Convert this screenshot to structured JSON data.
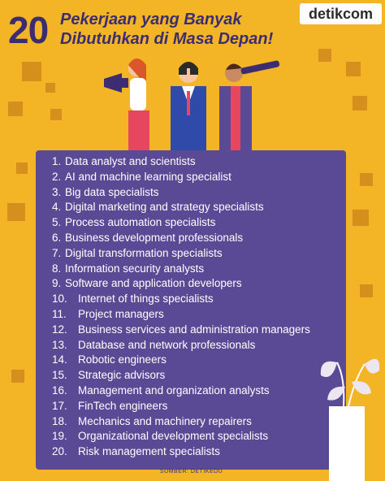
{
  "header": {
    "number": "20",
    "title_line1": "Pekerjaan yang Banyak",
    "title_line2": "Dibutuhkan di Masa Depan!"
  },
  "brand": {
    "logo": "detikcom"
  },
  "jobs": [
    {
      "n": "1.",
      "label": "Data analyst and scientists"
    },
    {
      "n": "2.",
      "label": "AI and machine learning specialist"
    },
    {
      "n": "3.",
      "label": "Big data specialists"
    },
    {
      "n": "4.",
      "label": "Digital marketing and strategy specialists"
    },
    {
      "n": "5.",
      "label": "Process automation specialists"
    },
    {
      "n": "6.",
      "label": "Business development professionals"
    },
    {
      "n": "7.",
      "label": "Digital transformation specialists"
    },
    {
      "n": "8.",
      "label": "Information security analysts"
    },
    {
      "n": "9.",
      "label": "Software and application developers"
    },
    {
      "n": "10.",
      "label": "Internet of things specialists"
    },
    {
      "n": "11.",
      "label": "Project managers"
    },
    {
      "n": "12.",
      "label": "Business services and administration managers"
    },
    {
      "n": "13.",
      "label": "Database and network professionals"
    },
    {
      "n": "14.",
      "label": "Robotic engineers"
    },
    {
      "n": "15.",
      "label": "Strategic advisors"
    },
    {
      "n": "16.",
      "label": "Management and organization analysts"
    },
    {
      "n": "17.",
      "label": "FinTech engineers"
    },
    {
      "n": "18.",
      "label": "Mechanics and machinery repairers"
    },
    {
      "n": "19.",
      "label": "Organizational development specialists"
    },
    {
      "n": "20.",
      "label": "Risk management specialists"
    }
  ],
  "footer": {
    "source": "SUMBER:  DETIKEDU"
  },
  "colors": {
    "background": "#f3b526",
    "panel": "#5a4a96",
    "title": "#3c2d73",
    "accent_square": "#d48f1d"
  },
  "illustrations": [
    "megaphone-person",
    "binoculars-person",
    "telescope-person",
    "plant-vase"
  ]
}
